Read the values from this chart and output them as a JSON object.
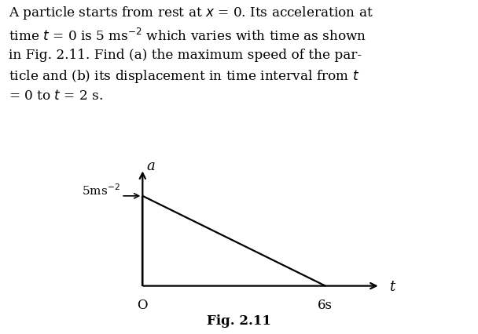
{
  "fig_label": "Fig. 2.11",
  "graph": {
    "origin_label": "O",
    "x_label": "t",
    "y_label": "a",
    "x_end_label": "6s",
    "y_start_label": "5ms",
    "superscript": "-2",
    "arrow_label": "→",
    "line_color": "#000000",
    "line_width": 1.6,
    "background_color": "#ffffff",
    "text_color": "#000000"
  },
  "text_lines": [
    "A particle starts from rest at x = 0. Its acceleration at",
    "time t = 0 is 5 ms⁻² which varies with time as shown",
    "in Fig. 2.11. Find (a) the maximum speed of the par-",
    "ticle and (b) its displacement in time interval from t",
    "= 0 to t = 2 s."
  ]
}
